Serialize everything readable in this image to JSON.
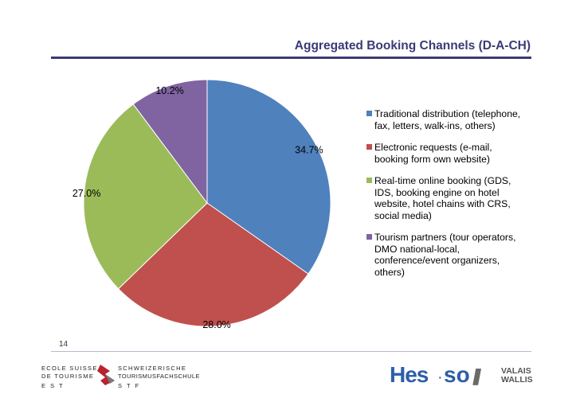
{
  "slide": {
    "title": "Aggregated Booking Channels (D-A-CH)",
    "page_number": "14"
  },
  "logos": {
    "school_line1": "ECOLE SUISSE",
    "school_line2": "DE TOURISME",
    "school_line3": "E S T",
    "school_de_line1": "SCHWEIZERISCHE",
    "school_de_line2": "TOURISMUSFACHSCHULE",
    "school_de_line3": "S T F",
    "hes_name": "Hes",
    "hes_so": "so",
    "region_line1": "VALAIS",
    "region_line2": "WALLIS"
  },
  "chart_data": {
    "type": "pie",
    "title": "",
    "values": [
      34.7,
      28.0,
      27.0,
      10.2
    ],
    "data_labels": [
      "34.7%",
      "28.0%",
      "27.0%",
      "10.2%"
    ],
    "labels": [
      "Traditional distribution (telephone, fax, letters, walk-ins, others)",
      "Electronic requests (e-mail, booking form own website)",
      "Real-time online booking (GDS, IDS, booking engine on hotel website, hotel chains with CRS, social media)",
      "Tourism partners (tour operators, DMO national-local, conference/event organizers, others)"
    ],
    "colors": [
      "#4f81bd",
      "#c0504d",
      "#9bbb59",
      "#8064a2"
    ],
    "legend_position": "right"
  }
}
